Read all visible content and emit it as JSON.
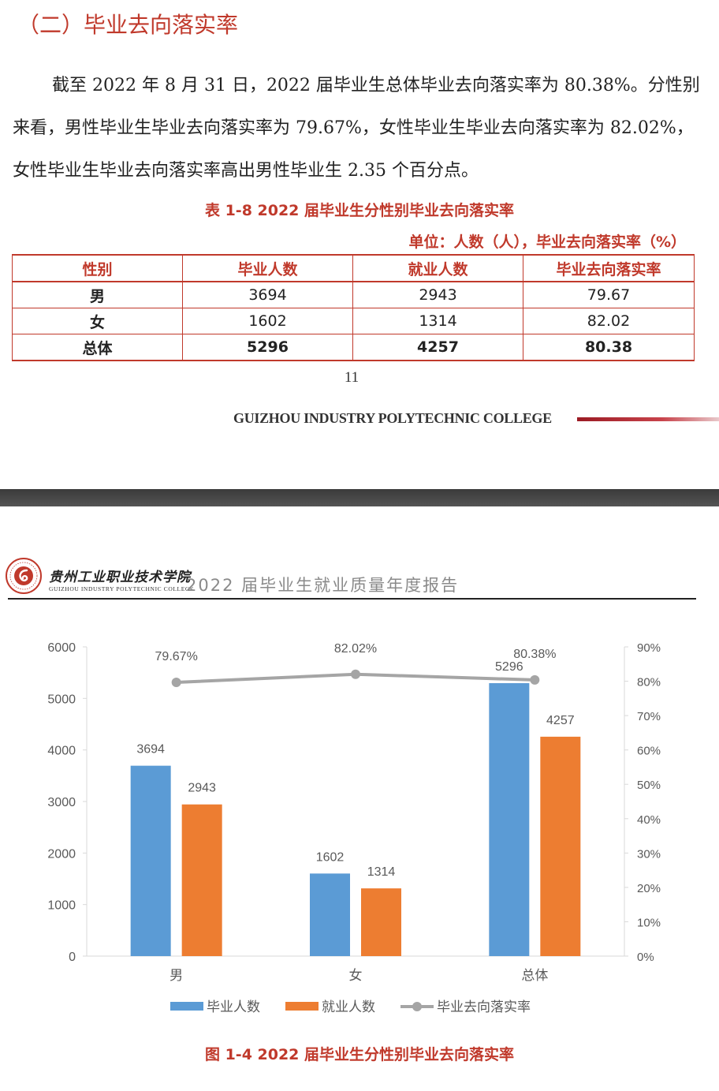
{
  "section": {
    "heading": "（二）毕业去向落实率"
  },
  "paragraph": "截至 2022 年 8 月 31 日，2022 届毕业生总体毕业去向落实率为 80.38%。分性别来看，男性毕业生毕业去向落实率为 79.67%，女性毕业生毕业去向落实率为 82.02%，女性毕业生毕业去向落实率高出男性毕业生 2.35 个百分点。",
  "table": {
    "title": "表 1-8  2022 届毕业生分性别毕业去向落实率",
    "unit": "单位：人数（人），毕业去向落实率（%）",
    "headers": [
      "性别",
      "毕业人数",
      "就业人数",
      "毕业去向落实率"
    ],
    "rows": [
      [
        "男",
        "3694",
        "2943",
        "79.67"
      ],
      [
        "女",
        "1602",
        "1314",
        "82.02"
      ],
      [
        "总体",
        "5296",
        "4257",
        "80.38"
      ]
    ]
  },
  "page_number": "11",
  "footer": {
    "college": "GUIZHOU INDUSTRY POLYTECHNIC COLLEGE"
  },
  "header2": {
    "logo_cn": "贵州工业职业技术学院",
    "logo_en": "GUIZHOU  INDUSTRY  POLYTECHNIC  COLLEGE",
    "report_title": "2022 届毕业生就业质量年度报告"
  },
  "figure_caption": "图 1-4  2022 届毕业生分性别毕业去向落实率",
  "colors": {
    "accent_red": "#c0392b",
    "bar_blue": "#5b9bd5",
    "bar_orange": "#ed7d31",
    "line_gray": "#a5a5a5"
  },
  "chart_data": {
    "type": "bar",
    "categories": [
      "男",
      "女",
      "总体"
    ],
    "series": [
      {
        "name": "毕业人数",
        "kind": "bar",
        "axis": "left",
        "color": "#5b9bd5",
        "values": [
          3694,
          1602,
          5296
        ],
        "labels": [
          "3694",
          "1602",
          "5296"
        ]
      },
      {
        "name": "就业人数",
        "kind": "bar",
        "axis": "left",
        "color": "#ed7d31",
        "values": [
          2943,
          1314,
          4257
        ],
        "labels": [
          "2943",
          "1314",
          "4257"
        ]
      },
      {
        "name": "毕业去向落实率",
        "kind": "line",
        "axis": "right",
        "color": "#a5a5a5",
        "values": [
          79.67,
          82.02,
          80.38
        ],
        "labels": [
          "79.67%",
          "82.02%",
          "80.38%"
        ]
      }
    ],
    "y_left": {
      "min": 0,
      "max": 6000,
      "ticks": [
        "0",
        "1000",
        "2000",
        "3000",
        "4000",
        "5000",
        "6000"
      ]
    },
    "y_right": {
      "min": 0,
      "max": 90,
      "ticks": [
        "0%",
        "10%",
        "20%",
        "30%",
        "40%",
        "50%",
        "60%",
        "70%",
        "80%",
        "90%"
      ]
    },
    "legend_position": "bottom",
    "grid": false
  }
}
